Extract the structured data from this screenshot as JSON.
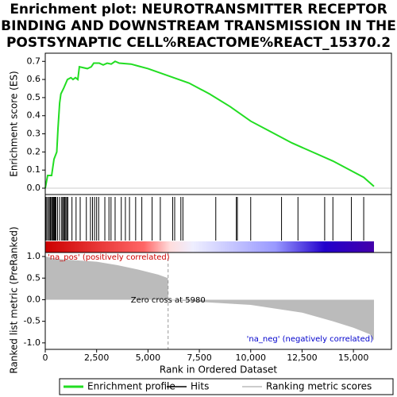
{
  "chart_data": [
    {
      "type": "line",
      "name": "Enrichment profile",
      "color": "#22dd22",
      "title": [
        "Enrichment plot: NEUROTRANSMITTER RECEPTOR",
        "BINDING AND DOWNSTREAM TRANSMISSION IN THE",
        "POSTSYNAPTIC CELL%REACTOME%REACT_15370.2"
      ],
      "y_label": "Enrichment score (ES)",
      "x": [
        0,
        116,
        310,
        425,
        560,
        620,
        700,
        760,
        890,
        1080,
        1250,
        1350,
        1470,
        1585,
        1660,
        2050,
        2240,
        2360,
        2630,
        2820,
        3015,
        3210,
        3400,
        3600,
        4175,
        4500,
        5000,
        6000,
        7000,
        8000,
        9000,
        10000,
        11000,
        12000,
        13000,
        14000,
        15000,
        15500,
        16000
      ],
      "values": [
        0,
        0.07,
        0.07,
        0.16,
        0.2,
        0.33,
        0.47,
        0.52,
        0.55,
        0.6,
        0.61,
        0.6,
        0.61,
        0.6,
        0.67,
        0.66,
        0.67,
        0.69,
        0.69,
        0.68,
        0.69,
        0.685,
        0.7,
        0.69,
        0.685,
        0.675,
        0.66,
        0.62,
        0.58,
        0.52,
        0.45,
        0.37,
        0.31,
        0.25,
        0.2,
        0.15,
        0.09,
        0.06,
        0.01
      ],
      "xlim": [
        0,
        16850
      ],
      "ylim": [
        -0.035,
        0.745
      ],
      "yticks": [
        {
          "value": 0,
          "label": "0.0"
        },
        0.1,
        0.2,
        0.3,
        0.4,
        0.5,
        0.6,
        0.7
      ]
    },
    {
      "type": "hits",
      "name": "Hits",
      "color": "#000000",
      "x": [
        30,
        80,
        150,
        200,
        250,
        300,
        350,
        380,
        420,
        450,
        480,
        520,
        600,
        700,
        800,
        850,
        900,
        950,
        1000,
        1050,
        1100,
        1300,
        1500,
        1700,
        2000,
        2200,
        2300,
        2400,
        2500,
        2600,
        2900,
        3100,
        3200,
        3400,
        3700,
        3900,
        4100,
        4400,
        4700,
        5200,
        5600,
        6200,
        6300,
        6600,
        6700,
        8300,
        9300,
        9350,
        10000,
        11500,
        12300,
        13600,
        14000,
        14900,
        15500
      ],
      "xlim": [
        0,
        16850
      ]
    },
    {
      "type": "area",
      "name": "Ranking metric scores",
      "color": "#bbbbbb",
      "y_label": "Ranked list metric (PreRanked)",
      "x_label": "Rank in Ordered Dataset",
      "x": [
        0,
        500,
        1000,
        2500,
        3500,
        4500,
        5500,
        5970,
        5990,
        7500,
        10000,
        12500,
        14000,
        15000,
        15800,
        16000
      ],
      "values": [
        1.0,
        0.95,
        0.93,
        0.88,
        0.8,
        0.7,
        0.58,
        0.5,
        -0.01,
        -0.05,
        -0.12,
        -0.3,
        -0.5,
        -0.65,
        -0.8,
        -0.95
      ],
      "xlim": [
        0,
        16850
      ],
      "ylim": [
        -1.15,
        1.093
      ],
      "xticks": [
        0,
        {
          "value": 2500,
          "label": "2,500"
        },
        {
          "value": 5000,
          "label": "5,000"
        },
        {
          "value": 7500,
          "label": "7,500"
        },
        {
          "value": 10000,
          "label": "10,000"
        },
        {
          "value": 12500,
          "label": "12,500"
        },
        {
          "value": 15000,
          "label": "15,000"
        }
      ],
      "yticks": [
        {
          "value": -1,
          "label": "-1.0"
        },
        -0.5,
        {
          "value": 0,
          "label": "0.0"
        },
        0.5,
        {
          "value": 1,
          "label": "1.0"
        }
      ],
      "zero_cross": 5980,
      "annotations": [
        "'na_pos' (positively correlated)",
        "Zero cross at 5980",
        "'na_neg' (negatively correlated)"
      ]
    }
  ]
}
